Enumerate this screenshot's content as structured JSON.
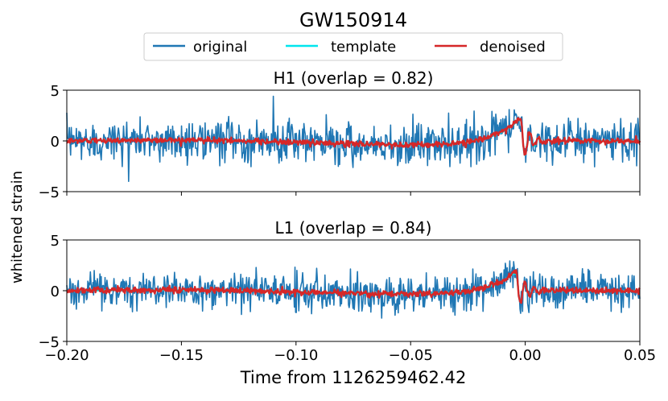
{
  "chart_data": {
    "title": "GW150914",
    "type": "line",
    "legend": {
      "placement": "top-center",
      "entries": [
        {
          "label": "original",
          "color": "#1f77b4"
        },
        {
          "label": "template",
          "color": "#00e5ee"
        },
        {
          "label": "denoised",
          "color": "#d62728"
        }
      ]
    },
    "xlabel": "Time from 1126259462.42",
    "ylabel": "whitened strain",
    "xlim": [
      -0.2,
      0.05
    ],
    "xticks": [
      -0.2,
      -0.15,
      -0.1,
      -0.05,
      0.0,
      0.05
    ],
    "xtick_labels": [
      "−0.20",
      "−0.15",
      "−0.10",
      "−0.05",
      "0.00",
      "0.05"
    ],
    "panels": [
      {
        "id": "H1",
        "title": "H1 (overlap = 0.82)",
        "ylim": [
          -5,
          5
        ],
        "yticks": [
          -5,
          0,
          5
        ],
        "ytick_labels": [
          "−5",
          "0",
          "5"
        ],
        "chirp": {
          "amplitude": 2.3,
          "peak_time": -0.002
        },
        "series": [
          {
            "name": "original",
            "noise_std": 1.0,
            "spike": {
              "x": -0.11,
              "y": 4.4
            }
          },
          {
            "name": "template"
          },
          {
            "name": "denoised"
          }
        ]
      },
      {
        "id": "L1",
        "title": "L1 (overlap = 0.84)",
        "ylim": [
          -5,
          5
        ],
        "yticks": [
          -5,
          0,
          5
        ],
        "ytick_labels": [
          "−5",
          "0",
          "5"
        ],
        "chirp": {
          "amplitude": 1.9,
          "peak_time": -0.004
        },
        "series": [
          {
            "name": "original",
            "noise_std": 0.9
          },
          {
            "name": "template"
          },
          {
            "name": "denoised"
          }
        ]
      }
    ]
  }
}
